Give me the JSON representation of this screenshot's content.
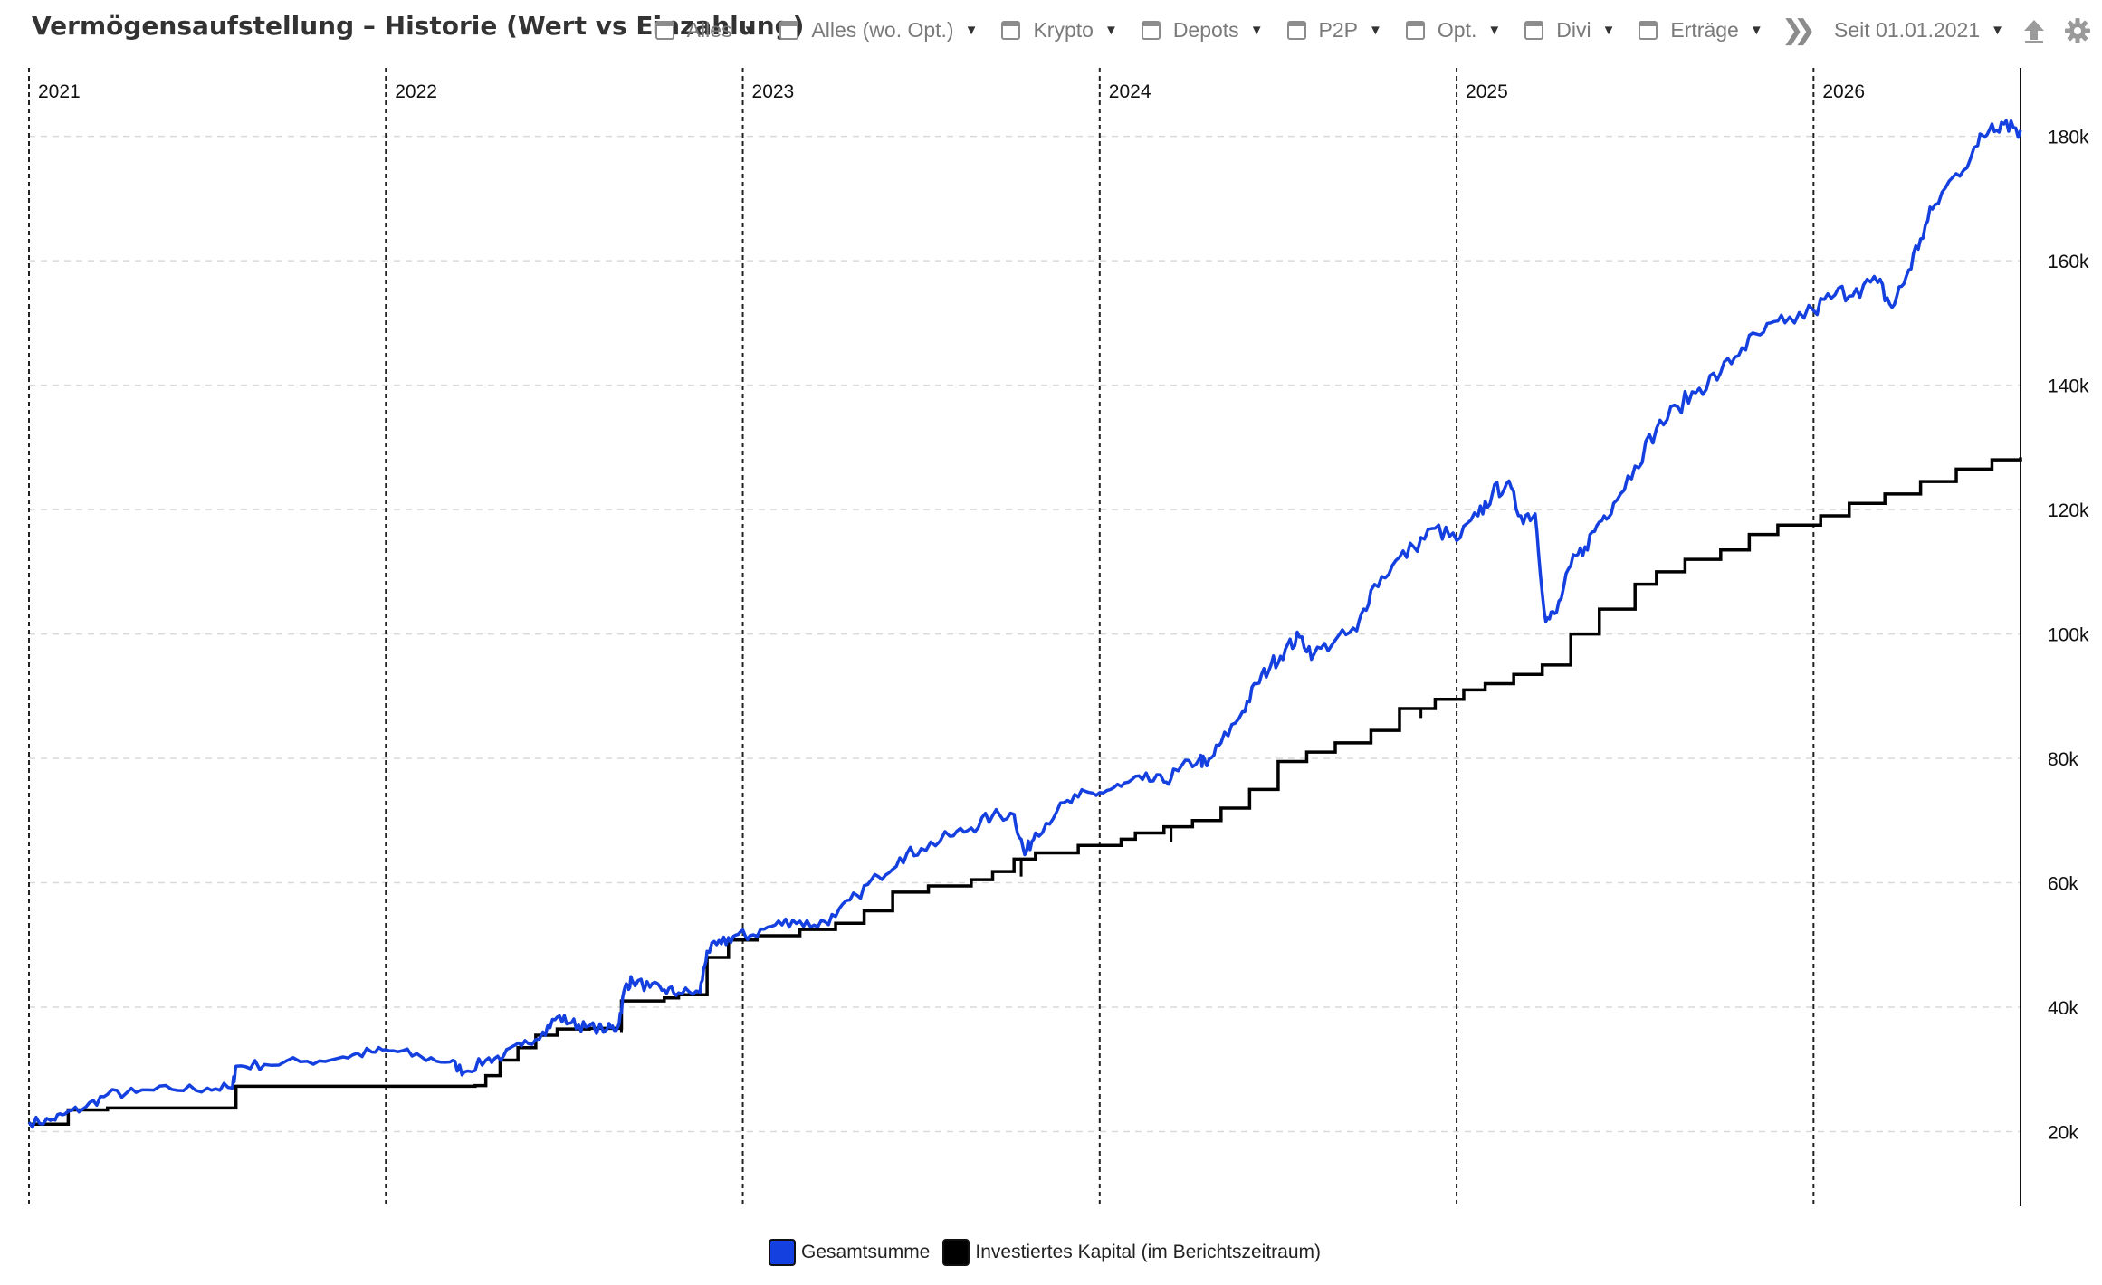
{
  "header": {
    "title": "Vermögensaufstellung – Historie (Wert vs Einzahlung)",
    "filters": [
      {
        "label": "Alles",
        "checked": false
      },
      {
        "label": "Alles (wo. Opt.)",
        "checked": false
      },
      {
        "label": "Krypto",
        "checked": false
      },
      {
        "label": "Depots",
        "checked": false
      },
      {
        "label": "P2P",
        "checked": false
      },
      {
        "label": "Opt.",
        "checked": false
      },
      {
        "label": "Divi",
        "checked": false
      },
      {
        "label": "Erträge",
        "checked": false
      }
    ],
    "since_label": "Seit 01.01.2021",
    "icons": [
      "double-chevron-icon",
      "upload-icon",
      "gear-icon"
    ]
  },
  "colors": {
    "gesamt": "#1540e0",
    "invest": "#000000",
    "grid": "#d9d9d9",
    "year_line": "#222222"
  },
  "chart_data": {
    "type": "line",
    "title": "",
    "xlabel": "",
    "ylabel": "",
    "x_ticks": [
      "2021",
      "2022",
      "2023",
      "2024",
      "2025",
      "2026"
    ],
    "x_range": [
      2021.0,
      2026.58
    ],
    "y_ticks": [
      "20k",
      "40k",
      "60k",
      "80k",
      "100k",
      "120k",
      "140k",
      "160k",
      "180k"
    ],
    "y_range": [
      8000,
      191000
    ],
    "grid": "horizontal dashed",
    "legend_position": "bottom-center",
    "series": [
      {
        "name": "Gesamtsumme",
        "color": "#1540e0",
        "points": [
          [
            2021.0,
            21500
          ],
          [
            2021.06,
            21800
          ],
          [
            2021.1,
            22800
          ],
          [
            2021.16,
            24000
          ],
          [
            2021.22,
            26000
          ],
          [
            2021.3,
            26300
          ],
          [
            2021.4,
            26800
          ],
          [
            2021.5,
            27000
          ],
          [
            2021.57,
            27000
          ],
          [
            2021.58,
            30500
          ],
          [
            2021.66,
            30800
          ],
          [
            2021.78,
            31300
          ],
          [
            2021.88,
            32000
          ],
          [
            2021.96,
            32800
          ],
          [
            2022.02,
            33000
          ],
          [
            2022.1,
            32000
          ],
          [
            2022.18,
            31200
          ],
          [
            2022.22,
            29600
          ],
          [
            2022.28,
            31500
          ],
          [
            2022.33,
            32200
          ],
          [
            2022.38,
            33800
          ],
          [
            2022.44,
            36000
          ],
          [
            2022.48,
            38400
          ],
          [
            2022.52,
            37500
          ],
          [
            2022.56,
            36800
          ],
          [
            2022.62,
            36500
          ],
          [
            2022.65,
            36800
          ],
          [
            2022.67,
            43200
          ],
          [
            2022.69,
            44300
          ],
          [
            2022.74,
            43200
          ],
          [
            2022.78,
            42800
          ],
          [
            2022.82,
            42300
          ],
          [
            2022.88,
            42400
          ],
          [
            2022.9,
            49000
          ],
          [
            2022.94,
            50200
          ],
          [
            2022.98,
            51600
          ],
          [
            2023.02,
            51500
          ],
          [
            2023.08,
            53000
          ],
          [
            2023.14,
            54000
          ],
          [
            2023.2,
            53200
          ],
          [
            2023.26,
            54600
          ],
          [
            2023.32,
            58000
          ],
          [
            2023.38,
            61000
          ],
          [
            2023.44,
            64000
          ],
          [
            2023.5,
            65500
          ],
          [
            2023.58,
            67500
          ],
          [
            2023.64,
            68800
          ],
          [
            2023.7,
            70800
          ],
          [
            2023.76,
            71000
          ],
          [
            2023.79,
            64500
          ],
          [
            2023.82,
            68000
          ],
          [
            2023.88,
            71500
          ],
          [
            2023.94,
            73800
          ],
          [
            2024.0,
            74500
          ],
          [
            2024.06,
            75500
          ],
          [
            2024.12,
            76600
          ],
          [
            2024.18,
            76200
          ],
          [
            2024.22,
            78000
          ],
          [
            2024.28,
            80000
          ],
          [
            2024.3,
            78800
          ],
          [
            2024.34,
            82500
          ],
          [
            2024.4,
            87500
          ],
          [
            2024.44,
            92000
          ],
          [
            2024.48,
            95000
          ],
          [
            2024.52,
            97500
          ],
          [
            2024.56,
            99500
          ],
          [
            2024.6,
            96700
          ],
          [
            2024.66,
            99000
          ],
          [
            2024.72,
            100500
          ],
          [
            2024.76,
            107000
          ],
          [
            2024.82,
            111000
          ],
          [
            2024.88,
            114000
          ],
          [
            2024.94,
            117000
          ],
          [
            2025.0,
            115000
          ],
          [
            2025.06,
            119000
          ],
          [
            2025.1,
            122500
          ],
          [
            2025.14,
            124200
          ],
          [
            2025.18,
            119000
          ],
          [
            2025.22,
            119300
          ],
          [
            2025.25,
            102000
          ],
          [
            2025.28,
            103500
          ],
          [
            2025.32,
            111000
          ],
          [
            2025.36,
            114000
          ],
          [
            2025.4,
            118000
          ],
          [
            2025.44,
            121000
          ],
          [
            2025.5,
            127000
          ],
          [
            2025.56,
            133000
          ],
          [
            2025.62,
            136500
          ],
          [
            2025.68,
            139500
          ],
          [
            2025.74,
            142000
          ],
          [
            2025.8,
            146000
          ],
          [
            2025.86,
            148500
          ],
          [
            2025.92,
            150000
          ],
          [
            2026.0,
            152000
          ],
          [
            2026.06,
            154500
          ],
          [
            2026.12,
            155500
          ],
          [
            2026.18,
            156500
          ],
          [
            2026.22,
            152500
          ],
          [
            2026.26,
            157500
          ],
          [
            2026.3,
            163500
          ],
          [
            2026.34,
            169000
          ],
          [
            2026.4,
            174000
          ],
          [
            2026.46,
            178500
          ],
          [
            2026.5,
            182000
          ],
          [
            2026.54,
            182500
          ],
          [
            2026.58,
            181000
          ]
        ]
      },
      {
        "name": "Investiertes Kapital (im Berichtszeitraum)",
        "color": "#000000",
        "steps": [
          [
            2021.0,
            21200
          ],
          [
            2021.11,
            23500
          ],
          [
            2021.22,
            23800
          ],
          [
            2021.58,
            27300
          ],
          [
            2022.25,
            27400
          ],
          [
            2022.28,
            29000
          ],
          [
            2022.32,
            31500
          ],
          [
            2022.37,
            33500
          ],
          [
            2022.42,
            35500
          ],
          [
            2022.48,
            36500
          ],
          [
            2022.57,
            36600
          ],
          [
            2022.66,
            41000
          ],
          [
            2022.78,
            41500
          ],
          [
            2022.82,
            42000
          ],
          [
            2022.9,
            48000
          ],
          [
            2022.96,
            50800
          ],
          [
            2023.04,
            51500
          ],
          [
            2023.16,
            52500
          ],
          [
            2023.26,
            53500
          ],
          [
            2023.34,
            55500
          ],
          [
            2023.42,
            58500
          ],
          [
            2023.52,
            59500
          ],
          [
            2023.64,
            60500
          ],
          [
            2023.7,
            61800
          ],
          [
            2023.76,
            63800
          ],
          [
            2023.82,
            64800
          ],
          [
            2023.94,
            66000
          ],
          [
            2024.06,
            67000
          ],
          [
            2024.1,
            68000
          ],
          [
            2024.18,
            69000
          ],
          [
            2024.26,
            70000
          ],
          [
            2024.34,
            72000
          ],
          [
            2024.42,
            75000
          ],
          [
            2024.5,
            79500
          ],
          [
            2024.58,
            81000
          ],
          [
            2024.66,
            82500
          ],
          [
            2024.76,
            84500
          ],
          [
            2024.84,
            88000
          ],
          [
            2024.94,
            89500
          ],
          [
            2025.02,
            91000
          ],
          [
            2025.08,
            92000
          ],
          [
            2025.16,
            93500
          ],
          [
            2025.24,
            95000
          ],
          [
            2025.32,
            100000
          ],
          [
            2025.4,
            104000
          ],
          [
            2025.5,
            108000
          ],
          [
            2025.56,
            110000
          ],
          [
            2025.64,
            112000
          ],
          [
            2025.74,
            113500
          ],
          [
            2025.82,
            116000
          ],
          [
            2025.9,
            117500
          ],
          [
            2026.02,
            119000
          ],
          [
            2026.1,
            121000
          ],
          [
            2026.2,
            122500
          ],
          [
            2026.3,
            124500
          ],
          [
            2026.4,
            126500
          ],
          [
            2026.5,
            128000
          ],
          [
            2026.58,
            128400
          ]
        ],
        "dips": [
          [
            2022.66,
            36000
          ],
          [
            2023.78,
            61000
          ],
          [
            2024.2,
            66500
          ],
          [
            2024.9,
            86500
          ]
        ]
      }
    ]
  }
}
